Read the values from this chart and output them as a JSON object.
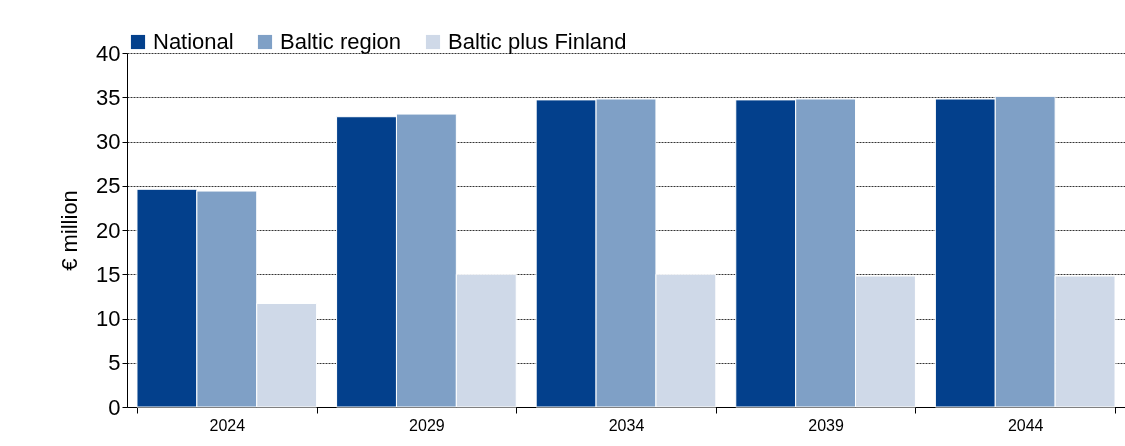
{
  "chart_data": {
    "type": "bar",
    "ylabel": "€ million",
    "categories": [
      "2024",
      "2029",
      "2034",
      "2039",
      "2044"
    ],
    "series": [
      {
        "name": "National",
        "color": "#03408c",
        "values": [
          24.6,
          32.8,
          34.7,
          34.7,
          34.8
        ]
      },
      {
        "name": "Baltic region",
        "color": "#7fa0c6",
        "values": [
          24.4,
          33.1,
          34.8,
          34.8,
          35.1
        ]
      },
      {
        "name": "Baltic plus Finland",
        "color": "#cfd9e8",
        "values": [
          11.7,
          15.0,
          15.0,
          14.8,
          14.8
        ]
      }
    ],
    "ylim": [
      0,
      40
    ],
    "yticks": [
      0,
      5,
      10,
      15,
      20,
      25,
      30,
      35,
      40
    ],
    "grid": "y",
    "legend": "top"
  }
}
